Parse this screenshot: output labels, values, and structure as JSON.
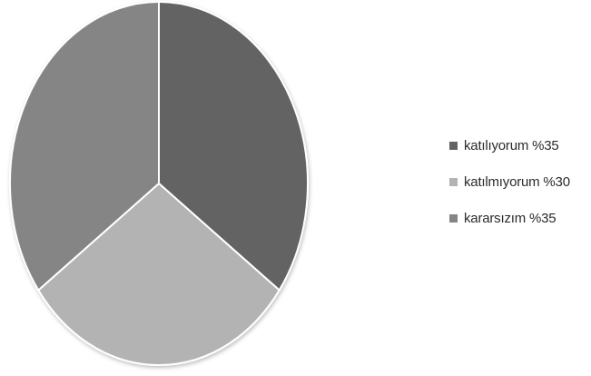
{
  "chart_data": {
    "type": "pie",
    "title": "",
    "slices": [
      {
        "label": "katılıyorum %35",
        "value": 35,
        "color": "#646464"
      },
      {
        "label": "katılmıyorum %30",
        "value": 30,
        "color": "#b3b3b3"
      },
      {
        "label": "kararsızım %35",
        "value": 35,
        "color": "#858585"
      }
    ],
    "start_angle_deg": 0,
    "direction": "clockwise",
    "legend_position": "right"
  }
}
